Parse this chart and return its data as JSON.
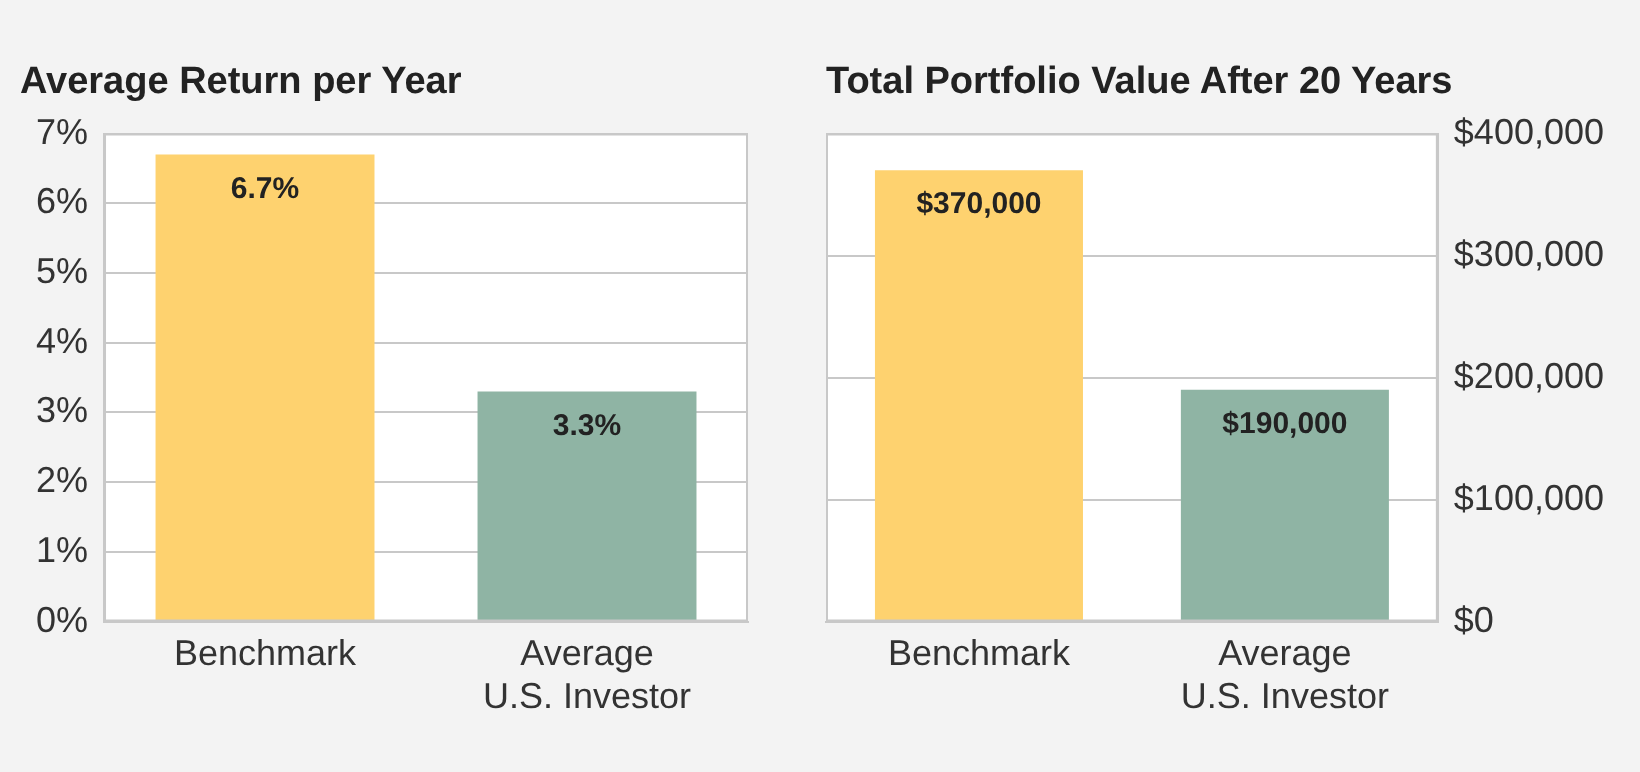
{
  "chart_data": [
    {
      "type": "bar",
      "title": "Average Return per Year",
      "categories": [
        "Benchmark",
        "Average\nU.S. Investor"
      ],
      "values": [
        6.7,
        3.3
      ],
      "colors": [
        "#fed26f",
        "#8fb4a4"
      ],
      "value_labels": [
        "6.7%",
        "3.3%"
      ],
      "ylim": [
        0,
        7
      ],
      "yticks": [
        {
          "value": 0,
          "label": "0%"
        },
        {
          "value": 1,
          "label": "1%"
        },
        {
          "value": 2,
          "label": "2%"
        },
        {
          "value": 3,
          "label": "3%"
        },
        {
          "value": 4,
          "label": "4%"
        },
        {
          "value": 5,
          "label": "5%"
        },
        {
          "value": 6,
          "label": "6%"
        },
        {
          "value": 7,
          "label": "7%"
        }
      ],
      "grid": "y"
    },
    {
      "type": "bar",
      "title": "Total Portfolio Value After 20 Years",
      "categories": [
        "Benchmark",
        "Average\nU.S. Investor"
      ],
      "series": [
        {
          "values": [
            370000,
            190000
          ],
          "colors": [
            "#fed26f",
            "#8fb4a4"
          ],
          "axis": "y2",
          "value_labels": [
            "$370,000",
            "$190,000"
          ]
        }
      ],
      "y2lim": [
        0,
        400000
      ],
      "y2ticks": [
        {
          "value": 0,
          "label": "$0"
        },
        {
          "value": 100000,
          "label": "$100,000"
        },
        {
          "value": 200000,
          "label": "$200,000"
        },
        {
          "value": 300000,
          "label": "$300,000"
        },
        {
          "value": 400000,
          "label": "$400,000"
        }
      ],
      "grid": "y"
    }
  ]
}
